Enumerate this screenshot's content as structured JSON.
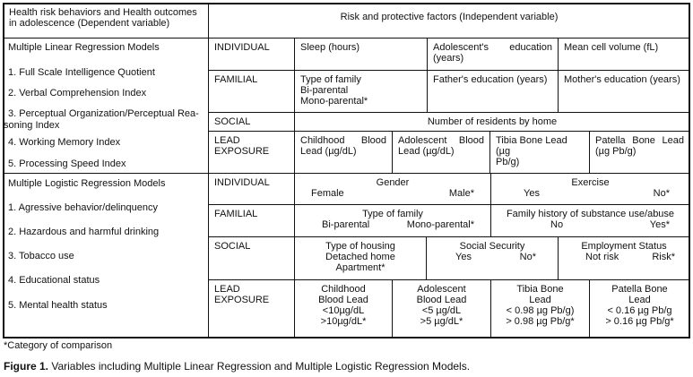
{
  "header": {
    "dependent": "Health risk behaviors and Health outcomes in adolescence (Dependent variable)",
    "independent": "Risk and protective factors (Independent variable)"
  },
  "linear": {
    "title": "Multiple Linear Regression Models",
    "items": [
      "1. Full Scale Intelligence Quotient",
      "2. Verbal Comprehension Index",
      "3. Perceptual Organization/Perceptual Rea-",
      "soning Index",
      "4. Working Memory Index",
      "5. Processing Speed Index"
    ],
    "individual": {
      "label": "INDIVIDUAL",
      "cells": [
        "Sleep (hours)",
        "Adolescent's education",
        "(years)",
        "Mean cell volume (fL)"
      ]
    },
    "familial": {
      "label": "FAMILIAL",
      "cells": [
        "Type of family",
        "Bi-parental",
        "Mono-parental*",
        "Father's education (years)",
        "Mother's education (years)"
      ]
    },
    "social": {
      "label": "SOCIAL",
      "cells": [
        "Number of residents by home"
      ]
    },
    "lead": {
      "label": "LEAD EXPOSURE",
      "cells": [
        "Childhood Blood",
        "Lead (µg/dL)",
        "Adolescent Blood",
        "Lead (µg/dL)",
        "Tibia Bone Lead (µg",
        "Pb/g)",
        "Patella Bone Lead",
        "(µg Pb/g)"
      ]
    }
  },
  "logistic": {
    "title": "Multiple Logistic Regression Models",
    "items": [
      "1. Agressive behavior/delinquency",
      "2. Hazardous and harmful drinking",
      "3. Tobacco use",
      "4. Educational status",
      "5. Mental health status"
    ],
    "individual": {
      "label": "INDIVIDUAL",
      "gender": {
        "title": "Gender",
        "a": "Female",
        "b": "Male*"
      },
      "exercise": {
        "title": "Exercise",
        "a": "Yes",
        "b": "No*"
      }
    },
    "familial": {
      "label": "FAMILIAL",
      "family": {
        "title": "Type of family",
        "a": "Bi-parental",
        "b": "Mono-parental*"
      },
      "history": {
        "title": "Family history of substance use/abuse",
        "a": "No",
        "b": "Yes*"
      }
    },
    "social": {
      "label": "SOCIAL",
      "housing": {
        "title": "Type of housing",
        "a": "Detached home",
        "b": "Apartment*"
      },
      "security": {
        "title": "Social Security",
        "a": "Yes",
        "b": "No*"
      },
      "employment": {
        "title": "Employment Status",
        "a": "Not risk",
        "b": "Risk*"
      }
    },
    "lead": {
      "label": "LEAD EXPOSURE",
      "cells": [
        [
          "Childhood",
          "Blood Lead",
          "<10µg/dL",
          ">10µg/dL*"
        ],
        [
          "Adolescent",
          "Blood Lead",
          "<5 µg/dL",
          ">5 µg/dL*"
        ],
        [
          "Tibia Bone",
          "Lead",
          "< 0.98 µg Pb/g)",
          "> 0.98 µg Pb/g*"
        ],
        [
          "Patella Bone",
          "Lead",
          "< 0.16 µg Pb/g",
          "> 0.16 µg Pb/g*"
        ]
      ]
    }
  },
  "footnote": "*Category of comparison",
  "caption": {
    "label": "Figure 1.",
    "text": " Variables including Multiple Linear Regression and Multiple Logistic Regression Models."
  }
}
